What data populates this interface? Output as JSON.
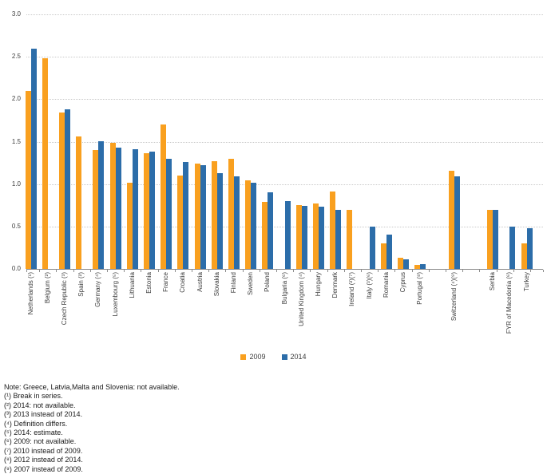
{
  "chart_data": {
    "type": "bar",
    "title": "",
    "xlabel": "",
    "ylabel": "",
    "ylim": [
      0,
      3.0
    ],
    "yticks": [
      "0.0",
      "0.5",
      "1.0",
      "1.5",
      "2.0",
      "2.5",
      "3.0"
    ],
    "grid": "horizontal-dotted",
    "legend_position": "bottom-center",
    "series": [
      "2009",
      "2014"
    ],
    "colors": {
      "2009": "#F9A01F",
      "2014": "#2C6DA9"
    },
    "groups": [
      {
        "name": "eu-member-states",
        "countries": [
          {
            "label": "Netherlands (¹)",
            "v2009": 2.1,
            "v2014": 2.6
          },
          {
            "label": "Belgium (²)",
            "v2009": 2.48,
            "v2014": null
          },
          {
            "label": "Czech Republic (³)",
            "v2009": 1.84,
            "v2014": 1.88
          },
          {
            "label": "Spain (²)",
            "v2009": 1.56,
            "v2014": null
          },
          {
            "label": "Germany (⁴)",
            "v2009": 1.4,
            "v2014": 1.5
          },
          {
            "label": "Luxembourg (⁵)",
            "v2009": 1.49,
            "v2014": 1.43
          },
          {
            "label": "Lithuania",
            "v2009": 1.02,
            "v2014": 1.41
          },
          {
            "label": "Estonia",
            "v2009": 1.36,
            "v2014": 1.38
          },
          {
            "label": "France",
            "v2009": 1.7,
            "v2014": 1.3
          },
          {
            "label": "Croatia",
            "v2009": 1.1,
            "v2014": 1.26
          },
          {
            "label": "Austria",
            "v2009": 1.24,
            "v2014": 1.22
          },
          {
            "label": "Slovakia",
            "v2009": 1.27,
            "v2014": 1.13
          },
          {
            "label": "Finland",
            "v2009": 1.3,
            "v2014": 1.09
          },
          {
            "label": "Sweden",
            "v2009": 1.04,
            "v2014": 1.02
          },
          {
            "label": "Poland",
            "v2009": 0.79,
            "v2014": 0.9
          },
          {
            "label": "Bulgaria (⁶)",
            "v2009": null,
            "v2014": 0.8
          },
          {
            "label": "United Kingdom (⁴)",
            "v2009": 0.75,
            "v2014": 0.74
          },
          {
            "label": "Hungary",
            "v2009": 0.77,
            "v2014": 0.73
          },
          {
            "label": "Denmark",
            "v2009": 0.91,
            "v2014": 0.7
          },
          {
            "label": "Ireland (²)(⁷)",
            "v2009": 0.7,
            "v2014": null
          },
          {
            "label": "Italy (³)(⁶)",
            "v2009": null,
            "v2014": 0.5
          },
          {
            "label": "Romania",
            "v2009": 0.3,
            "v2014": 0.4
          },
          {
            "label": "Cyprus",
            "v2009": 0.13,
            "v2014": 0.11
          },
          {
            "label": "Portugal (⁸)",
            "v2009": 0.05,
            "v2014": 0.06
          }
        ]
      },
      {
        "name": "efta",
        "countries": [
          {
            "label": "Switzerland (⁴)(⁹)",
            "v2009": 1.16,
            "v2014": 1.09
          }
        ]
      },
      {
        "name": "candidate-countries",
        "countries": [
          {
            "label": "Serbia",
            "v2009": 0.7,
            "v2014": 0.7
          },
          {
            "label": "FYR of Macedonia (⁶)",
            "v2009": null,
            "v2014": 0.5
          },
          {
            "label": "Turkey",
            "v2009": 0.3,
            "v2014": 0.48
          }
        ]
      }
    ]
  },
  "legend": {
    "items": [
      {
        "label": "2009"
      },
      {
        "label": "2014"
      }
    ]
  },
  "notes": {
    "lines": [
      "Note: Greece, Latvia,Malta and Slovenia: not available.",
      "(¹) Break in series.",
      "(²) 2014: not available.",
      "(³) 2013 instead of 2014.",
      "(⁴) Definition differs.",
      "(⁵) 2014: estimate.",
      "(⁶) 2009: not available.",
      "(⁷) 2010 instead of 2009.",
      "(⁸) 2012 instead of 2014.",
      "(⁹) 2007 instead of 2009."
    ]
  }
}
